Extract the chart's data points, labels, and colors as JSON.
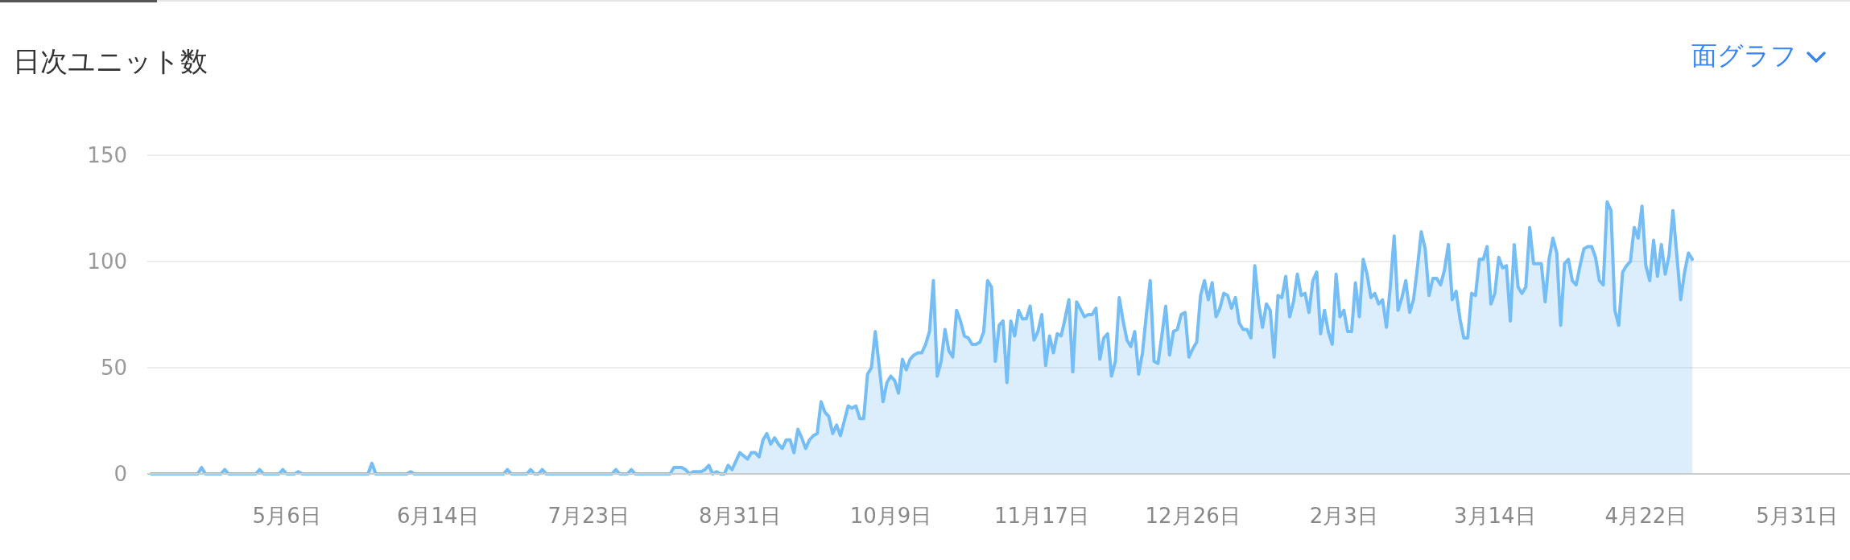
{
  "chart_data": {
    "type": "area",
    "title": "日次ユニット数",
    "annotations": [
      "面グラフ"
    ],
    "grid": "y",
    "ylim": [
      0,
      150
    ],
    "yticks": [
      0,
      50,
      100,
      150
    ],
    "categories": [
      null,
      null,
      null,
      null,
      null,
      null,
      null,
      null,
      null,
      null,
      null,
      null,
      null,
      null,
      null,
      null,
      null,
      null,
      null,
      null,
      null,
      null,
      null,
      null,
      null,
      null,
      null,
      null,
      null,
      null,
      null,
      null,
      null,
      null,
      null,
      "5月6日",
      null,
      null,
      null,
      null,
      null,
      null,
      null,
      null,
      null,
      null,
      null,
      null,
      null,
      null,
      null,
      null,
      null,
      null,
      null,
      null,
      null,
      null,
      null,
      null,
      null,
      null,
      null,
      null,
      null,
      null,
      null,
      null,
      null,
      null,
      null,
      null,
      null,
      null,
      "6月14日",
      null,
      null,
      null,
      null,
      null,
      null,
      null,
      null,
      null,
      null,
      null,
      null,
      null,
      null,
      null,
      null,
      null,
      null,
      null,
      null,
      null,
      null,
      null,
      null,
      null,
      null,
      null,
      null,
      null,
      null,
      null,
      null,
      null,
      null,
      null,
      null,
      null,
      null,
      "7月23日",
      null,
      null,
      null,
      null,
      null,
      null,
      null,
      null,
      null,
      null,
      null,
      null,
      null,
      null,
      null,
      null,
      null,
      null,
      null,
      null,
      null,
      null,
      null,
      null,
      null,
      null,
      null,
      null,
      null,
      null,
      null,
      null,
      null,
      null,
      null,
      null,
      null,
      null,
      "8月31日",
      null,
      null,
      null,
      null,
      null,
      null,
      null,
      null,
      null,
      null,
      null,
      null,
      null,
      null,
      null,
      null,
      null,
      null,
      null,
      null,
      null,
      null,
      null,
      null,
      null,
      null,
      null,
      null,
      null,
      null,
      null,
      null,
      null,
      null,
      null,
      null,
      null,
      null,
      "10月9日",
      null,
      null,
      null,
      null,
      null,
      null,
      null,
      null,
      null,
      null,
      null,
      null,
      null,
      null,
      null,
      null,
      null,
      null,
      null,
      null,
      null,
      null,
      null,
      null,
      null,
      null,
      null,
      null,
      null,
      null,
      null,
      null,
      null,
      null,
      null,
      null,
      null,
      null,
      "11月17日",
      null,
      null,
      null,
      null,
      null,
      null,
      null,
      null,
      null,
      null,
      null,
      null,
      null,
      null,
      null,
      null,
      null,
      null,
      null,
      null,
      null,
      null,
      null,
      null,
      null,
      null,
      null,
      null,
      null,
      null,
      null,
      null,
      null,
      null,
      null,
      null,
      null,
      null,
      "12月26日",
      null,
      null,
      null,
      null,
      null,
      null,
      null,
      null,
      null,
      null,
      null,
      null,
      null,
      null,
      null,
      null,
      null,
      null,
      null,
      null,
      null,
      null,
      null,
      null,
      null,
      null,
      null,
      null,
      null,
      null,
      null,
      null,
      null,
      null,
      null,
      null,
      null,
      null,
      "2月3日",
      null,
      null,
      null,
      null,
      null,
      null,
      null,
      null,
      null,
      null,
      null,
      null,
      null,
      null,
      null,
      null,
      null,
      null,
      null,
      null,
      null,
      null,
      null,
      null,
      null,
      null,
      null,
      null,
      null,
      null,
      null,
      null,
      null,
      null,
      null,
      null,
      null,
      null,
      "3月14日",
      null,
      null,
      null,
      null,
      null,
      null,
      null,
      null,
      null,
      null,
      null,
      null,
      null,
      null,
      null,
      null,
      null,
      null,
      null,
      null,
      null,
      null,
      null,
      null,
      null,
      null,
      null,
      null,
      null,
      null,
      null,
      null,
      null,
      null,
      null,
      null,
      null,
      null,
      "4月22日",
      null,
      null,
      null,
      null,
      null,
      null,
      null,
      null,
      null,
      null,
      null,
      null,
      null,
      null,
      null,
      null,
      null,
      null,
      null,
      null,
      null,
      null,
      null,
      null,
      null,
      null,
      null,
      null,
      null,
      null,
      null,
      null,
      null,
      null,
      null,
      null,
      null,
      null,
      "5月31日"
    ],
    "series": [
      {
        "color": "#74bdf5",
        "values": [
          0,
          0,
          0,
          0,
          0,
          0,
          0,
          0,
          0,
          0,
          0,
          0,
          0,
          3,
          0,
          0,
          0,
          0,
          0,
          2,
          0,
          0,
          0,
          0,
          0,
          0,
          0,
          0,
          2,
          0,
          0,
          0,
          0,
          0,
          2,
          0,
          0,
          0,
          1,
          0,
          0,
          0,
          0,
          0,
          0,
          0,
          0,
          0,
          0,
          0,
          0,
          0,
          0,
          0,
          0,
          0,
          0,
          5,
          0,
          0,
          0,
          0,
          0,
          0,
          0,
          0,
          0,
          1,
          0,
          0,
          0,
          0,
          0,
          0,
          0,
          0,
          0,
          0,
          0,
          0,
          0,
          0,
          0,
          0,
          0,
          0,
          0,
          0,
          0,
          0,
          0,
          0,
          2,
          0,
          0,
          0,
          0,
          0,
          2,
          0,
          0,
          2,
          0,
          0,
          0,
          0,
          0,
          0,
          0,
          0,
          0,
          0,
          0,
          0,
          0,
          0,
          0,
          0,
          0,
          0,
          2,
          0,
          0,
          0,
          2,
          0,
          0,
          0,
          0,
          0,
          0,
          0,
          0,
          0,
          0,
          3,
          3,
          3,
          2,
          0,
          1,
          1,
          1,
          2,
          4,
          0,
          1,
          0,
          0,
          4,
          2,
          6,
          10,
          null,
          7,
          10,
          10,
          8,
          16,
          19,
          14,
          17,
          14,
          12,
          16,
          16,
          10,
          21,
          17,
          12,
          16,
          18,
          19,
          34,
          29,
          27,
          19,
          23,
          18,
          25,
          32,
          31,
          32,
          26,
          26,
          47,
          50,
          67,
          51,
          34,
          43,
          46,
          44,
          38,
          54,
          49,
          54,
          56,
          57,
          57,
          61,
          67,
          91,
          46,
          53,
          68,
          58,
          55,
          77,
          72,
          65,
          64,
          61,
          61,
          62,
          67,
          91,
          88,
          53,
          70,
          72,
          43,
          72,
          65,
          77,
          73,
          73,
          79,
          63,
          67,
          75,
          51,
          65,
          57,
          66,
          65,
          73,
          82,
          48,
          81,
          null,
          74,
          75,
          75,
          78,
          54,
          64,
          66,
          46,
          53,
          83,
          72,
          63,
          60,
          67,
          47,
          57,
          75,
          91,
          53,
          52,
          65,
          79,
          56,
          67,
          68,
          75,
          76,
          55,
          59,
          62,
          84,
          91,
          82,
          90,
          74,
          78,
          85,
          84,
          78,
          83,
          71,
          68,
          68,
          64,
          98,
          80,
          69,
          80,
          77,
          55,
          84,
          83,
          93,
          74,
          81,
          94,
          84,
          85,
          76,
          91,
          95,
          66,
          77,
          67,
          61,
          94,
          74,
          77,
          67,
          67,
          90,
          74,
          101,
          94,
          83,
          85,
          80,
          82,
          69,
          88,
          112,
          77,
          83,
          91,
          76,
          82,
          97,
          114,
          106,
          84,
          92,
          92,
          89,
          96,
          108,
          82,
          86,
          73,
          64,
          64,
          85,
          84,
          101,
          101,
          107,
          80,
          85,
          102,
          97,
          98,
          72,
          108,
          88,
          85,
          88,
          116,
          99,
          99,
          99,
          81,
          101,
          111,
          104,
          70,
          99,
          101,
          91,
          89,
          98,
          106,
          107,
          107,
          102,
          91,
          89,
          128,
          124,
          77,
          70,
          95,
          98,
          100,
          116,
          111,
          126,
          98,
          91,
          110,
          93,
          108,
          94,
          103,
          124,
          103,
          82,
          95,
          104,
          101,
          null,
          null,
          null,
          null,
          null,
          null,
          null,
          null,
          null,
          null,
          null,
          null,
          null,
          null,
          null,
          null,
          null,
          null,
          null,
          null,
          null,
          null,
          null,
          null,
          null,
          null,
          null
        ]
      }
    ]
  }
}
